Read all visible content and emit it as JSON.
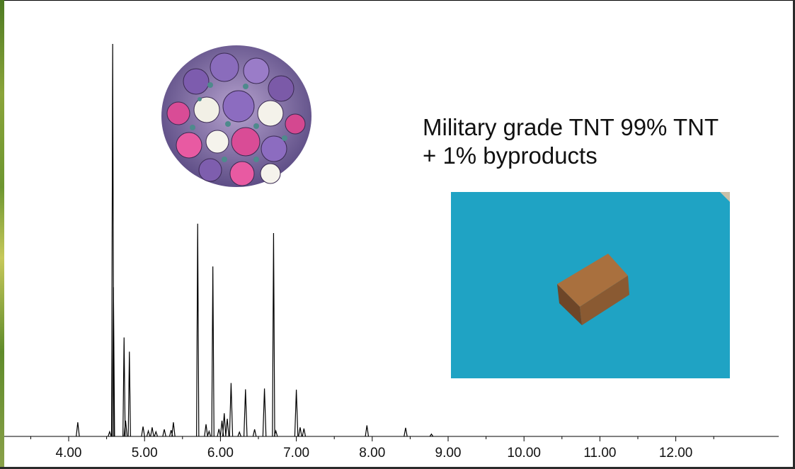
{
  "caption": {
    "line1": "Military grade TNT 99% TNT",
    "line2": "+ 1% byproducts"
  },
  "images": {
    "bouquet": "rose-bouquet-photo",
    "block": "tnt-block-photo"
  },
  "colors": {
    "trace": "#000000",
    "photo_background": "#1fa3c4",
    "block": "#a9703e"
  },
  "chart_data": {
    "type": "line",
    "title": "",
    "xlabel": "",
    "ylabel": "",
    "xlim": [
      3.5,
      12.6
    ],
    "ylim": [
      0,
      100
    ],
    "x_ticks": [
      "4.00",
      "5.00",
      "6.00",
      "7.00",
      "8.00",
      "9.00",
      "10.00",
      "11.00",
      "12.00"
    ],
    "grid": false,
    "peaks": [
      {
        "x": 4.12,
        "y": 3.6
      },
      {
        "x": 4.54,
        "y": 1.2
      },
      {
        "x": 4.58,
        "y": 100
      },
      {
        "x": 4.59,
        "y": 38
      },
      {
        "x": 4.73,
        "y": 25.2
      },
      {
        "x": 4.75,
        "y": 4.0
      },
      {
        "x": 4.8,
        "y": 21.6
      },
      {
        "x": 4.98,
        "y": 2.5
      },
      {
        "x": 5.05,
        "y": 1.4
      },
      {
        "x": 5.1,
        "y": 2.3
      },
      {
        "x": 5.15,
        "y": 1.2
      },
      {
        "x": 5.26,
        "y": 1.8
      },
      {
        "x": 5.35,
        "y": 1.6
      },
      {
        "x": 5.38,
        "y": 3.6
      },
      {
        "x": 5.7,
        "y": 54.2
      },
      {
        "x": 5.81,
        "y": 3.1
      },
      {
        "x": 5.85,
        "y": 1.3
      },
      {
        "x": 5.9,
        "y": 43.3
      },
      {
        "x": 5.98,
        "y": 1.9
      },
      {
        "x": 6.02,
        "y": 4.0
      },
      {
        "x": 6.05,
        "y": 5.9
      },
      {
        "x": 6.09,
        "y": 4.5
      },
      {
        "x": 6.14,
        "y": 13.6
      },
      {
        "x": 6.25,
        "y": 1.1
      },
      {
        "x": 6.33,
        "y": 12.0
      },
      {
        "x": 6.45,
        "y": 1.8
      },
      {
        "x": 6.58,
        "y": 12.2
      },
      {
        "x": 6.7,
        "y": 51.8
      },
      {
        "x": 6.73,
        "y": 1.4
      },
      {
        "x": 7.0,
        "y": 11.9
      },
      {
        "x": 7.05,
        "y": 2.3
      },
      {
        "x": 7.1,
        "y": 2.0
      },
      {
        "x": 7.93,
        "y": 2.8
      },
      {
        "x": 8.44,
        "y": 2.2
      },
      {
        "x": 8.78,
        "y": 0.6
      }
    ]
  }
}
